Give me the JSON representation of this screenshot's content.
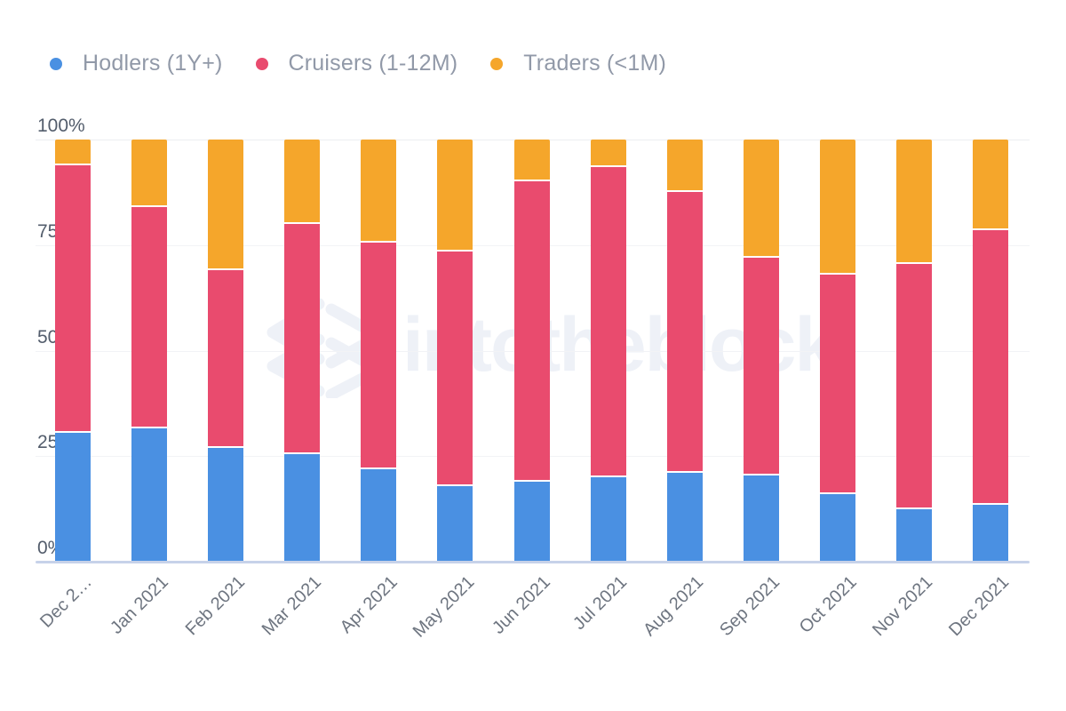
{
  "page": {
    "background": "#ffffff"
  },
  "legend": {
    "position": "top-left",
    "items": [
      {
        "key": "hodlers",
        "label": "Hodlers (1Y+)",
        "color": "#4a90e2"
      },
      {
        "key": "cruisers",
        "label": "Cruisers (1-12M)",
        "color": "#e94b6e"
      },
      {
        "key": "traders",
        "label": "Traders (<1M)",
        "color": "#f5a62b"
      }
    ]
  },
  "watermark": {
    "text": "intotheblock"
  },
  "axes": {
    "y_tick_labels": [
      "0%",
      "25%",
      "50%",
      "75%",
      "100%"
    ],
    "x_tick_labels": [
      "Dec 2…",
      "Jan 2021",
      "Feb 2021",
      "Mar 2021",
      "Apr 2021",
      "May 2021",
      "Jun 2021",
      "Jul 2021",
      "Aug 2021",
      "Sep 2021",
      "Oct 2021",
      "Nov 2021",
      "Dec 2021"
    ],
    "x_label_rotation_deg": -45,
    "axis_line_color": "#c7d2e9",
    "gridline_color": "#f2f3f6"
  },
  "chart_data": {
    "type": "bar",
    "stacked": true,
    "unit": "percent",
    "title": "",
    "legend_position": "top",
    "grid": "horizontal",
    "ylim": [
      0,
      100
    ],
    "y_tick_values": [
      0,
      25,
      50,
      75,
      100
    ],
    "y_tick_labels": [
      "0%",
      "25%",
      "50%",
      "75%",
      "100%"
    ],
    "categories": [
      "Dec 2…",
      "Jan 2021",
      "Feb 2021",
      "Mar 2021",
      "Apr 2021",
      "May 2021",
      "Jun 2021",
      "Jul 2021",
      "Aug 2021",
      "Sep 2021",
      "Oct 2021",
      "Nov 2021",
      "Dec 2021"
    ],
    "series": [
      {
        "key": "hodlers",
        "name": "Hodlers (1Y+)",
        "color": "#4a90e2",
        "values": [
          30.5,
          31.5,
          27,
          25.5,
          22,
          18,
          19,
          20,
          21,
          20.5,
          16,
          12.5,
          13.5
        ]
      },
      {
        "key": "cruisers",
        "name": "Cruisers (1-12M)",
        "color": "#e94b6e",
        "values": [
          63.5,
          52.5,
          42,
          54.5,
          53.5,
          55.5,
          71,
          73.5,
          66.5,
          51.5,
          52,
          58,
          65
        ]
      },
      {
        "key": "traders",
        "name": "Traders (<1M)",
        "color": "#f5a62b",
        "values": [
          6,
          16,
          31,
          20,
          24.5,
          26.5,
          10,
          6.5,
          12.5,
          28,
          32,
          29.5,
          21.5
        ]
      }
    ]
  }
}
